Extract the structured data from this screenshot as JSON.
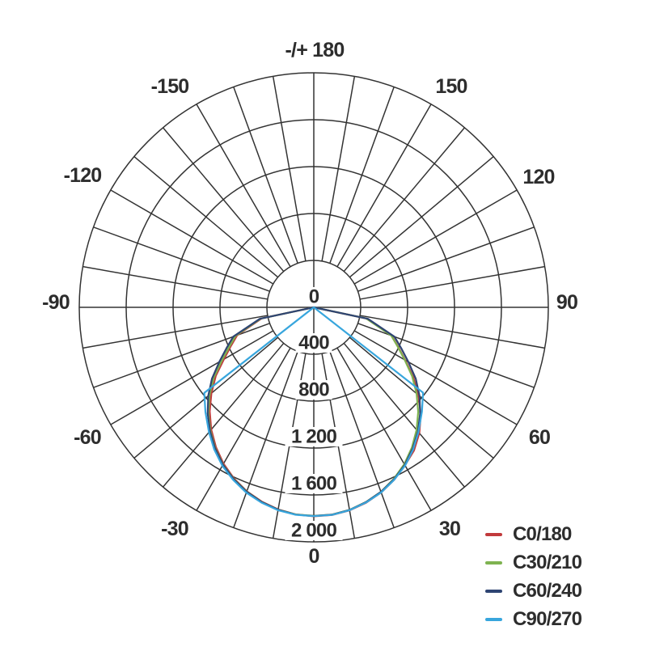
{
  "chart_data": {
    "type": "line",
    "subtype": "polar-photometric-intensity-diagram",
    "title": "",
    "background_color": "#ffffff",
    "grid_color": "#333333",
    "text_color": "#2d2d2d",
    "grid": "on",
    "angle_axis": {
      "unit": "degrees",
      "zero_position": "bottom",
      "spoke_step_deg": 10,
      "labels": [
        {
          "angle": 0,
          "text": "0"
        },
        {
          "angle": 30,
          "text": "30"
        },
        {
          "angle": -30,
          "text": "-30"
        },
        {
          "angle": 60,
          "text": "60"
        },
        {
          "angle": -60,
          "text": "-60"
        },
        {
          "angle": 90,
          "text": "90"
        },
        {
          "angle": -90,
          "text": "-90"
        },
        {
          "angle": 120,
          "text": "120"
        },
        {
          "angle": -120,
          "text": "-120"
        },
        {
          "angle": 150,
          "text": "150"
        },
        {
          "angle": -150,
          "text": "-150"
        },
        {
          "angle": 180,
          "text": "-/+ 180"
        }
      ]
    },
    "radial_axis": {
      "min": 0,
      "max": 2000,
      "tick_values": [
        0,
        400,
        800,
        1200,
        1600,
        2000
      ],
      "tick_labels": [
        "0",
        "400",
        "800",
        "1 200",
        "1 600",
        "2 000"
      ]
    },
    "legend": {
      "position": "bottom-right",
      "items": [
        {
          "label": "C0/180",
          "color": "#c13a3c"
        },
        {
          "label": "C30/210",
          "color": "#7eb350"
        },
        {
          "label": "C60/240",
          "color": "#2e4472"
        },
        {
          "label": "C90/270",
          "color": "#38a6dd"
        }
      ]
    },
    "series": [
      {
        "name": "C0/180",
        "color": "#c13a3c",
        "points": [
          [
            -90,
            0
          ],
          [
            -78,
            455
          ],
          [
            -70,
            695
          ],
          [
            -65,
            780
          ],
          [
            -60,
            885
          ],
          [
            -55,
            1020
          ],
          [
            -50,
            1140
          ],
          [
            -45,
            1255
          ],
          [
            -40,
            1360
          ],
          [
            -35,
            1455
          ],
          [
            -30,
            1540
          ],
          [
            -25,
            1610
          ],
          [
            -20,
            1670
          ],
          [
            -15,
            1715
          ],
          [
            -10,
            1750
          ],
          [
            -5,
            1772
          ],
          [
            0,
            1782
          ],
          [
            5,
            1778
          ],
          [
            10,
            1758
          ],
          [
            15,
            1725
          ],
          [
            20,
            1680
          ],
          [
            25,
            1622
          ],
          [
            30,
            1555
          ],
          [
            35,
            1490
          ],
          [
            40,
            1400
          ],
          [
            45,
            1290
          ],
          [
            50,
            1165
          ],
          [
            55,
            1035
          ],
          [
            60,
            900
          ],
          [
            65,
            792
          ],
          [
            70,
            706
          ],
          [
            78,
            458
          ],
          [
            90,
            0
          ]
        ]
      },
      {
        "name": "C30/210",
        "color": "#7eb350",
        "points": [
          [
            -90,
            0
          ],
          [
            -78,
            462
          ],
          [
            -70,
            710
          ],
          [
            -65,
            795
          ],
          [
            -60,
            905
          ],
          [
            -55,
            1040
          ],
          [
            -50,
            1160
          ],
          [
            -45,
            1272
          ],
          [
            -40,
            1372
          ],
          [
            -35,
            1465
          ],
          [
            -30,
            1548
          ],
          [
            -25,
            1615
          ],
          [
            -20,
            1672
          ],
          [
            -15,
            1718
          ],
          [
            -10,
            1752
          ],
          [
            -5,
            1773
          ],
          [
            0,
            1778
          ],
          [
            5,
            1774
          ],
          [
            10,
            1754
          ],
          [
            15,
            1719
          ],
          [
            20,
            1674
          ],
          [
            25,
            1614
          ],
          [
            30,
            1544
          ],
          [
            35,
            1459
          ],
          [
            40,
            1364
          ],
          [
            45,
            1259
          ],
          [
            50,
            1144
          ],
          [
            55,
            1024
          ],
          [
            60,
            894
          ],
          [
            65,
            788
          ],
          [
            70,
            702
          ],
          [
            78,
            456
          ],
          [
            90,
            0
          ]
        ]
      },
      {
        "name": "C60/240",
        "color": "#2e4472",
        "points": [
          [
            -90,
            0
          ],
          [
            -78,
            470
          ],
          [
            -70,
            730
          ],
          [
            -65,
            820
          ],
          [
            -60,
            930
          ],
          [
            -55,
            1060
          ],
          [
            -50,
            1175
          ],
          [
            -45,
            1280
          ],
          [
            -40,
            1378
          ],
          [
            -35,
            1468
          ],
          [
            -30,
            1550
          ],
          [
            -25,
            1617
          ],
          [
            -20,
            1673
          ],
          [
            -15,
            1719
          ],
          [
            -10,
            1753
          ],
          [
            -5,
            1774
          ],
          [
            0,
            1779
          ],
          [
            5,
            1775
          ],
          [
            10,
            1755
          ],
          [
            15,
            1720
          ],
          [
            20,
            1675
          ],
          [
            25,
            1618
          ],
          [
            30,
            1552
          ],
          [
            35,
            1470
          ],
          [
            40,
            1382
          ],
          [
            45,
            1283
          ],
          [
            50,
            1178
          ],
          [
            55,
            1062
          ],
          [
            60,
            932
          ],
          [
            65,
            822
          ],
          [
            70,
            732
          ],
          [
            78,
            472
          ],
          [
            90,
            0
          ]
        ]
      },
      {
        "name": "C90/270",
        "color": "#38a6dd",
        "points": [
          [
            -90,
            0
          ],
          [
            -52,
            1185
          ],
          [
            -46,
            1285
          ],
          [
            -40,
            1390
          ],
          [
            -35,
            1480
          ],
          [
            -30,
            1560
          ],
          [
            -25,
            1625
          ],
          [
            -20,
            1682
          ],
          [
            -15,
            1724
          ],
          [
            -10,
            1757
          ],
          [
            -5,
            1776
          ],
          [
            0,
            1781
          ],
          [
            5,
            1777
          ],
          [
            10,
            1757
          ],
          [
            15,
            1723
          ],
          [
            20,
            1680
          ],
          [
            25,
            1622
          ],
          [
            30,
            1558
          ],
          [
            35,
            1478
          ],
          [
            40,
            1388
          ],
          [
            46,
            1282
          ],
          [
            52,
            1182
          ],
          [
            90,
            0
          ]
        ]
      }
    ]
  }
}
